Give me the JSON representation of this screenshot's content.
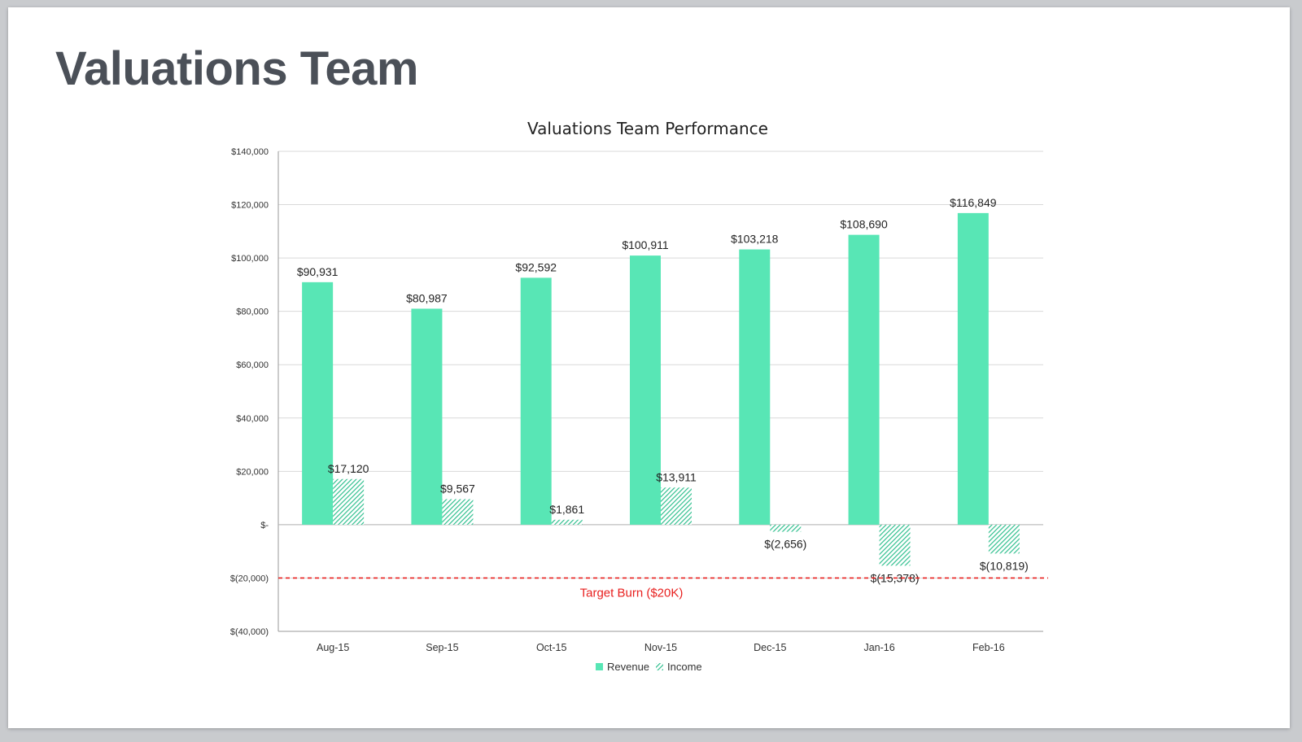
{
  "slide": {
    "title": "Valuations Team"
  },
  "colors": {
    "revenue": "#58e6b5",
    "income_stripe": "#2fbf8e",
    "income_bg": "#ffffff",
    "grid": "#d9d9d9",
    "axis": "#9a9a9a",
    "target": "#e8201f"
  },
  "chart_data": {
    "type": "bar",
    "title": "Valuations Team Performance",
    "categories": [
      "Aug-15",
      "Sep-15",
      "Oct-15",
      "Nov-15",
      "Dec-15",
      "Jan-16",
      "Feb-16"
    ],
    "series": [
      {
        "name": "Revenue",
        "values": [
          90931,
          80987,
          92592,
          100911,
          103218,
          108690,
          116849
        ],
        "labels": [
          "$90,931",
          "$80,987",
          "$92,592",
          "$100,911",
          "$103,218",
          "$108,690",
          "$116,849"
        ]
      },
      {
        "name": "Income",
        "values": [
          17120,
          9567,
          1861,
          13911,
          -2656,
          -15378,
          -10819
        ],
        "labels": [
          "$17,120",
          "$9,567",
          "$1,861",
          "$13,911",
          "$(2,656)",
          "$(15,378)",
          "$(10,819)"
        ]
      }
    ],
    "ylim": [
      -40000,
      140000
    ],
    "yticks": [
      140000,
      120000,
      100000,
      80000,
      60000,
      40000,
      20000,
      0,
      -20000,
      -40000
    ],
    "ytick_labels": [
      "$140,000",
      "$120,000",
      "$100,000",
      "$80,000",
      "$60,000",
      "$40,000",
      "$20,000",
      "$-",
      "$(20,000)",
      "$(40,000)"
    ],
    "target_line": {
      "value": -20000,
      "label": "Target Burn ($20K)"
    },
    "legend": {
      "position": "bottom",
      "items": [
        "Revenue",
        "Income"
      ]
    },
    "grid": true
  }
}
